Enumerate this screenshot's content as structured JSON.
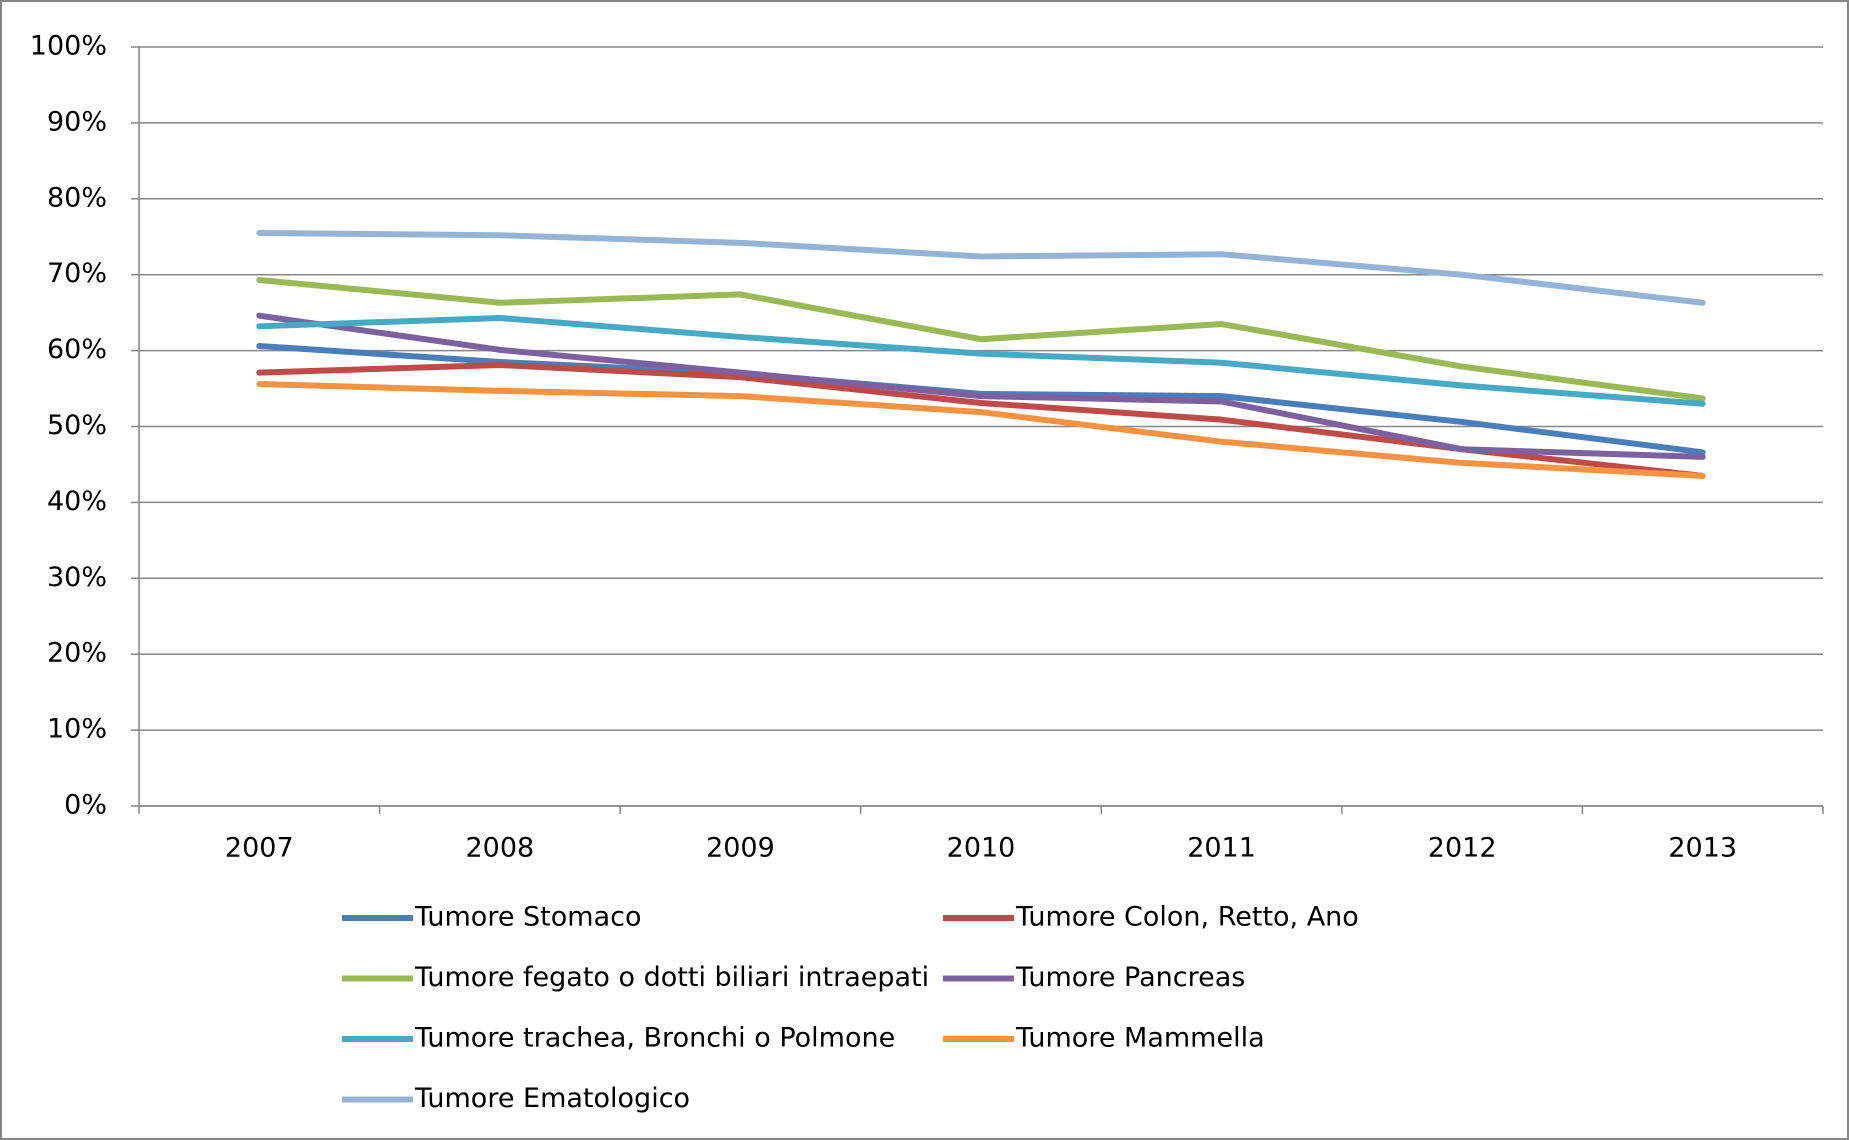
{
  "chart_data": {
    "type": "line",
    "categories": [
      "2007",
      "2008",
      "2009",
      "2010",
      "2011",
      "2012",
      "2013"
    ],
    "series": [
      {
        "name": "Tumore Stomaco",
        "color": "#4a7ebb",
        "values": [
          60.6,
          58.5,
          57.0,
          54.3,
          54.0,
          50.6,
          46.6
        ]
      },
      {
        "name": "Tumore Colon, Retto, Ano",
        "color": "#be4b48",
        "values": [
          57.1,
          58.1,
          56.5,
          53.1,
          50.9,
          47.0,
          43.5
        ]
      },
      {
        "name": "Tumore fegato o dotti biliari intraepati",
        "color": "#98b954",
        "values": [
          69.3,
          66.3,
          67.4,
          61.5,
          63.5,
          57.9,
          53.7
        ]
      },
      {
        "name": "Tumore Pancreas",
        "color": "#7d60a0",
        "values": [
          64.6,
          60.1,
          57.1,
          54.0,
          53.3,
          47.0,
          46.0
        ]
      },
      {
        "name": "Tumore trachea, Bronchi o Polmone",
        "color": "#46aac5",
        "values": [
          63.2,
          64.3,
          61.8,
          59.6,
          58.4,
          55.4,
          53.0
        ]
      },
      {
        "name": "Tumore Mammella",
        "color": "#f69240",
        "values": [
          55.6,
          54.7,
          54.0,
          51.9,
          48.0,
          45.2,
          43.5
        ]
      },
      {
        "name": "Tumore Ematologico",
        "color": "#94b3d6",
        "values": [
          75.5,
          75.2,
          74.2,
          72.4,
          72.7,
          70.0,
          66.3
        ]
      }
    ],
    "ylim": [
      0,
      100
    ],
    "yticks": [
      {
        "value": 0,
        "label": "0%"
      },
      {
        "value": 10,
        "label": "10%"
      },
      {
        "value": 20,
        "label": "20%"
      },
      {
        "value": 30,
        "label": "30%"
      },
      {
        "value": 40,
        "label": "40%"
      },
      {
        "value": 50,
        "label": "50%"
      },
      {
        "value": 60,
        "label": "60%"
      },
      {
        "value": 70,
        "label": "70%"
      },
      {
        "value": 80,
        "label": "80%"
      },
      {
        "value": 90,
        "label": "90%"
      },
      {
        "value": 100,
        "label": "100%"
      }
    ],
    "grid": true,
    "legend": "bottom"
  }
}
